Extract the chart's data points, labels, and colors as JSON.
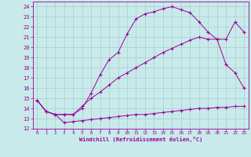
{
  "xlabel": "Windchill (Refroidissement éolien,°C)",
  "bg_color": "#c8eaea",
  "line_color": "#990099",
  "grid_color": "#aacccc",
  "xlim": [
    -0.5,
    23.5
  ],
  "ylim": [
    12,
    24.5
  ],
  "xticks": [
    0,
    1,
    2,
    3,
    4,
    5,
    6,
    7,
    8,
    9,
    10,
    11,
    12,
    13,
    14,
    15,
    16,
    17,
    18,
    19,
    20,
    21,
    22,
    23
  ],
  "yticks": [
    12,
    13,
    14,
    15,
    16,
    17,
    18,
    19,
    20,
    21,
    22,
    23,
    24
  ],
  "line1_x": [
    0,
    1,
    2,
    3,
    4,
    5,
    6,
    7,
    8,
    9,
    10,
    11,
    12,
    13,
    14,
    15,
    16,
    17,
    18,
    19,
    20,
    21,
    22,
    23
  ],
  "line1_y": [
    14.8,
    13.7,
    13.4,
    12.6,
    12.7,
    12.8,
    12.9,
    13.0,
    13.1,
    13.2,
    13.3,
    13.4,
    13.4,
    13.5,
    13.6,
    13.7,
    13.8,
    13.9,
    14.0,
    14.0,
    14.1,
    14.1,
    14.2,
    14.2
  ],
  "line2_x": [
    0,
    1,
    2,
    3,
    4,
    5,
    6,
    7,
    8,
    9,
    10,
    11,
    12,
    13,
    14,
    15,
    16,
    17,
    18,
    19,
    20,
    21,
    22,
    23
  ],
  "line2_y": [
    14.8,
    13.7,
    13.4,
    13.4,
    13.4,
    14.2,
    15.0,
    15.6,
    16.3,
    17.0,
    17.5,
    18.0,
    18.5,
    19.0,
    19.5,
    19.9,
    20.3,
    20.7,
    21.0,
    20.8,
    20.8,
    18.3,
    17.5,
    16.0
  ],
  "line3_x": [
    0,
    1,
    2,
    3,
    4,
    5,
    6,
    7,
    8,
    9,
    10,
    11,
    12,
    13,
    14,
    15,
    16,
    17,
    18,
    19,
    20,
    21,
    22,
    23
  ],
  "line3_y": [
    14.8,
    13.7,
    13.4,
    13.4,
    13.4,
    14.0,
    15.5,
    17.3,
    18.8,
    19.5,
    21.3,
    22.8,
    23.3,
    23.5,
    23.8,
    24.0,
    23.7,
    23.4,
    22.5,
    21.5,
    20.8,
    20.8,
    22.5,
    21.5
  ]
}
